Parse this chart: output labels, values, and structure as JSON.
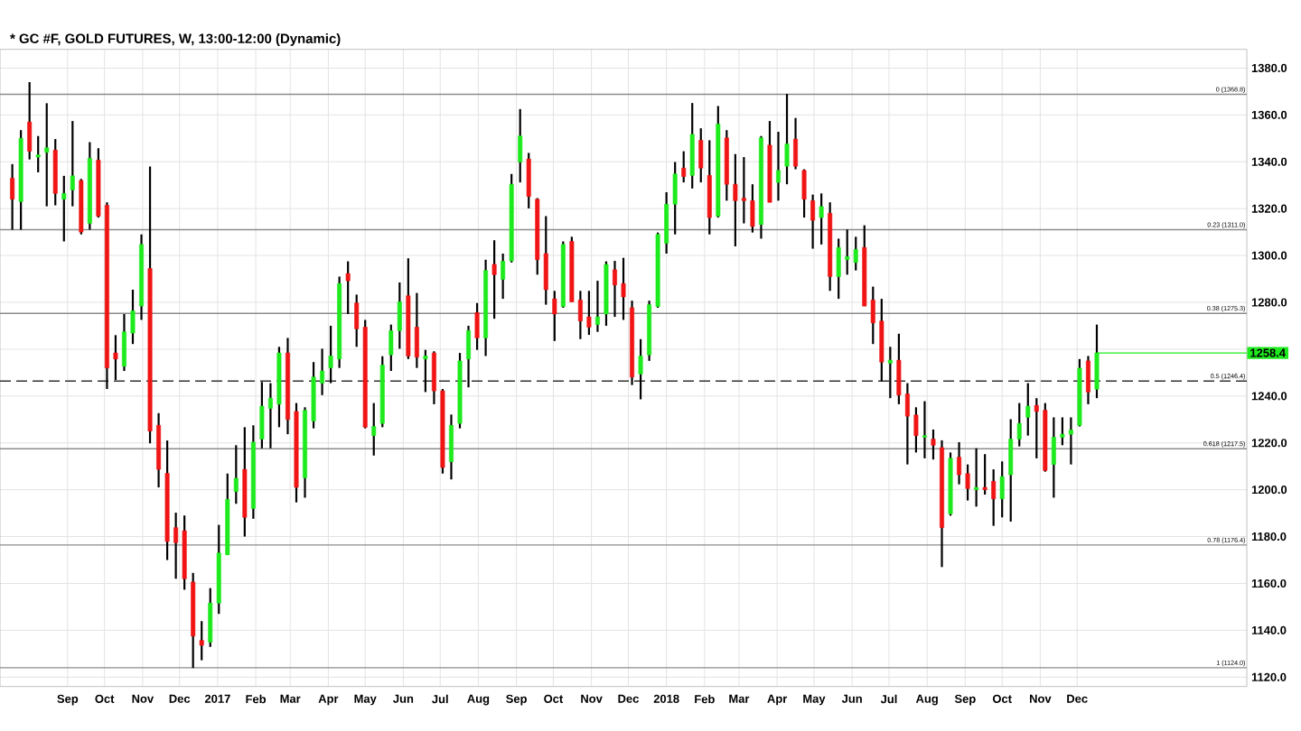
{
  "chart_data": {
    "type": "candlestick",
    "title": "* GC #F, GOLD FUTURES, W, 13:00-12:00 (Dynamic)",
    "x": [
      "2016-07-18",
      "2016-07-25",
      "2016-08-01",
      "2016-08-08",
      "2016-08-15",
      "2016-08-22",
      "2016-08-29",
      "2016-09-05",
      "2016-09-12",
      "2016-09-19",
      "2016-09-26",
      "2016-10-03",
      "2016-10-10",
      "2016-10-17",
      "2016-10-24",
      "2016-10-31",
      "2016-11-07",
      "2016-11-14",
      "2016-11-21",
      "2016-11-28",
      "2016-12-05",
      "2016-12-12",
      "2016-12-19",
      "2016-12-26",
      "2017-01-02",
      "2017-01-09",
      "2017-01-16",
      "2017-01-23",
      "2017-01-30",
      "2017-02-06",
      "2017-02-13",
      "2017-02-20",
      "2017-02-27",
      "2017-03-06",
      "2017-03-13",
      "2017-03-20",
      "2017-03-27",
      "2017-04-03",
      "2017-04-10",
      "2017-04-17",
      "2017-04-24",
      "2017-05-01",
      "2017-05-08",
      "2017-05-15",
      "2017-05-22",
      "2017-05-29",
      "2017-06-05",
      "2017-06-12",
      "2017-06-19",
      "2017-06-26",
      "2017-07-03",
      "2017-07-10",
      "2017-07-17",
      "2017-07-24",
      "2017-07-31",
      "2017-08-07",
      "2017-08-14",
      "2017-08-21",
      "2017-08-28",
      "2017-09-04",
      "2017-09-11",
      "2017-09-18",
      "2017-09-25",
      "2017-10-02",
      "2017-10-09",
      "2017-10-16",
      "2017-10-23",
      "2017-10-30",
      "2017-11-06",
      "2017-11-13",
      "2017-11-20",
      "2017-11-27",
      "2017-12-04",
      "2017-12-11",
      "2017-12-18",
      "2017-12-25",
      "2018-01-01",
      "2018-01-08",
      "2018-01-15",
      "2018-01-22",
      "2018-01-29",
      "2018-02-05",
      "2018-02-12",
      "2018-02-19",
      "2018-02-26",
      "2018-03-05",
      "2018-03-12",
      "2018-03-19",
      "2018-03-26",
      "2018-04-02",
      "2018-04-09",
      "2018-04-16",
      "2018-04-23",
      "2018-04-30",
      "2018-05-07",
      "2018-05-14",
      "2018-05-21",
      "2018-05-28",
      "2018-06-04",
      "2018-06-11",
      "2018-06-18",
      "2018-06-25",
      "2018-07-02",
      "2018-07-09",
      "2018-07-16",
      "2018-07-23",
      "2018-07-30",
      "2018-08-06",
      "2018-08-13",
      "2018-08-20",
      "2018-08-27",
      "2018-09-03",
      "2018-09-10",
      "2018-09-17",
      "2018-09-24",
      "2018-10-01",
      "2018-10-08",
      "2018-10-15",
      "2018-10-22",
      "2018-10-29",
      "2018-11-05",
      "2018-11-12",
      "2018-11-19",
      "2018-11-26",
      "2018-12-03",
      "2018-12-10",
      "2018-12-17"
    ],
    "ohlc": [
      [
        1333,
        1339,
        1311,
        1324
      ],
      [
        1323,
        1353.5,
        1311,
        1350
      ],
      [
        1357,
        1374,
        1341,
        1344.5
      ],
      [
        1342,
        1351,
        1335.5,
        1343
      ],
      [
        1344,
        1365,
        1321,
        1346
      ],
      [
        1345,
        1349.7,
        1321.4,
        1326.5
      ],
      [
        1324,
        1334,
        1306,
        1326.5
      ],
      [
        1328,
        1357.4,
        1321,
        1334
      ],
      [
        1332,
        1332.7,
        1309,
        1310
      ],
      [
        1313.7,
        1348.4,
        1311,
        1341.5
      ],
      [
        1340.7,
        1345.8,
        1316.2,
        1316.8
      ],
      [
        1321.4,
        1322.7,
        1243,
        1252
      ],
      [
        1258.4,
        1266,
        1246.8,
        1255.8
      ],
      [
        1252.7,
        1275,
        1250.7,
        1267.4
      ],
      [
        1266.9,
        1285.4,
        1262.2,
        1276.4
      ],
      [
        1278.4,
        1309,
        1272.5,
        1304.7
      ],
      [
        1294.4,
        1338,
        1219.8,
        1225
      ],
      [
        1227.5,
        1232.7,
        1201,
        1208.7
      ],
      [
        1207,
        1221,
        1170,
        1177.9
      ],
      [
        1183.8,
        1190.2,
        1162,
        1177.4
      ],
      [
        1182.5,
        1189,
        1157.3,
        1162
      ],
      [
        1160.6,
        1164.5,
        1123.9,
        1137.5
      ],
      [
        1135.7,
        1143.9,
        1127.2,
        1133.6
      ],
      [
        1134.9,
        1158,
        1132.9,
        1151.6
      ],
      [
        1151.6,
        1185,
        1147,
        1173
      ],
      [
        1172.2,
        1206.9,
        1172.2,
        1195.9
      ],
      [
        1199.2,
        1219,
        1194,
        1204.9
      ],
      [
        1208.7,
        1226.7,
        1180,
        1188.2
      ],
      [
        1192,
        1227.5,
        1187.6,
        1220.3
      ],
      [
        1221.6,
        1246,
        1217.7,
        1235.7
      ],
      [
        1234.7,
        1245.5,
        1217.7,
        1239.1
      ],
      [
        1236.5,
        1261,
        1226.7,
        1258.4
      ],
      [
        1258.4,
        1264.8,
        1223.7,
        1230
      ],
      [
        1233.4,
        1237,
        1194.6,
        1201
      ],
      [
        1205.1,
        1235.2,
        1196.6,
        1233.9
      ],
      [
        1229.3,
        1254.5,
        1226.2,
        1248.1
      ],
      [
        1245.5,
        1260.2,
        1240.4,
        1250.7
      ],
      [
        1252,
        1270,
        1245.5,
        1257.1
      ],
      [
        1255.8,
        1291,
        1252,
        1288
      ],
      [
        1292.3,
        1297.5,
        1275,
        1289.2
      ],
      [
        1279.7,
        1283.3,
        1261,
        1268.7
      ],
      [
        1269.4,
        1272.5,
        1226.2,
        1226.7
      ],
      [
        1223.1,
        1237,
        1214.6,
        1227
      ],
      [
        1228.3,
        1257,
        1226.7,
        1253.2
      ],
      [
        1257.6,
        1270.5,
        1250.7,
        1267.9
      ],
      [
        1267.9,
        1288.5,
        1260.2,
        1280.2
      ],
      [
        1282.8,
        1298.8,
        1255.8,
        1257.1
      ],
      [
        1269.4,
        1284,
        1252,
        1256.6
      ],
      [
        1255.8,
        1259.7,
        1241.7,
        1257.1
      ],
      [
        1258.4,
        1259.1,
        1236.5,
        1242.2
      ],
      [
        1242.2,
        1243,
        1206.9,
        1209.5
      ],
      [
        1212,
        1232.1,
        1204.4,
        1227.5
      ],
      [
        1228.3,
        1258.4,
        1226.2,
        1255
      ],
      [
        1255.8,
        1270,
        1243.7,
        1267.9
      ],
      [
        1275.6,
        1279.7,
        1259.7,
        1264.8
      ],
      [
        1264.8,
        1298.2,
        1257.1,
        1293.6
      ],
      [
        1296.2,
        1306.5,
        1273,
        1291.8
      ],
      [
        1289.8,
        1300.8,
        1281.5,
        1297.5
      ],
      [
        1297.7,
        1334.8,
        1297,
        1330.4
      ],
      [
        1339.9,
        1362.5,
        1331.2,
        1351
      ],
      [
        1341.2,
        1343.8,
        1320.1,
        1325.2
      ],
      [
        1324,
        1324.5,
        1291.8,
        1298.2
      ],
      [
        1300.8,
        1316.8,
        1279,
        1285.4
      ],
      [
        1281.5,
        1284.9,
        1263.5,
        1275
      ],
      [
        1278.2,
        1306,
        1277.7,
        1304.7
      ],
      [
        1306,
        1308,
        1280.2,
        1280.2
      ],
      [
        1281,
        1284.9,
        1264.3,
        1272
      ],
      [
        1273.8,
        1284.9,
        1266.1,
        1269.4
      ],
      [
        1270.5,
        1289.2,
        1267.4,
        1273.8
      ],
      [
        1275,
        1297.5,
        1270,
        1296.2
      ],
      [
        1293.9,
        1297.7,
        1273.8,
        1287.4
      ],
      [
        1288,
        1299,
        1272.5,
        1282.3
      ],
      [
        1277.7,
        1280.7,
        1244.7,
        1248.1
      ],
      [
        1249.4,
        1264.3,
        1238.6,
        1257.1
      ],
      [
        1257.6,
        1280.7,
        1255,
        1279
      ],
      [
        1278.2,
        1309.8,
        1277.7,
        1309
      ],
      [
        1305.2,
        1327,
        1300.8,
        1321.9
      ],
      [
        1321.9,
        1339.9,
        1309,
        1334.8
      ],
      [
        1337.3,
        1344.5,
        1331.2,
        1333.7
      ],
      [
        1334.2,
        1365.1,
        1328.6,
        1351.7
      ],
      [
        1349.2,
        1354.3,
        1331.2,
        1337.3
      ],
      [
        1334.2,
        1349.2,
        1309,
        1316.2
      ],
      [
        1316.8,
        1363.8,
        1316.2,
        1356.1
      ],
      [
        1350.2,
        1353.5,
        1323.4,
        1330.4
      ],
      [
        1330.4,
        1343.3,
        1303.9,
        1323.4
      ],
      [
        1324.5,
        1342,
        1313.7,
        1323.4
      ],
      [
        1323.4,
        1330.4,
        1309.8,
        1312.4
      ],
      [
        1313.2,
        1351,
        1307.2,
        1350.2
      ],
      [
        1347.1,
        1357.4,
        1322.7,
        1322.7
      ],
      [
        1331.2,
        1352.8,
        1323.4,
        1336.3
      ],
      [
        1338.1,
        1369,
        1330.4,
        1347.6
      ],
      [
        1349.7,
        1358.7,
        1336.8,
        1338.1
      ],
      [
        1336.3,
        1336.8,
        1316.2,
        1324
      ],
      [
        1323.4,
        1326,
        1302.9,
        1315
      ],
      [
        1316.2,
        1326.5,
        1304.7,
        1320.9
      ],
      [
        1318,
        1322.7,
        1284.9,
        1291
      ],
      [
        1291,
        1307.2,
        1281.5,
        1303.4
      ],
      [
        1298.2,
        1311.1,
        1291.8,
        1299.5
      ],
      [
        1297,
        1308,
        1293.6,
        1302.6
      ],
      [
        1303.4,
        1312.9,
        1278.4,
        1278.4
      ],
      [
        1281,
        1286.7,
        1262.2,
        1271.2
      ],
      [
        1272,
        1281.5,
        1246.3,
        1254.5
      ],
      [
        1254,
        1261,
        1239.1,
        1255.3
      ],
      [
        1255.3,
        1266.6,
        1236.5,
        1240.4
      ],
      [
        1240.9,
        1245.5,
        1210.8,
        1231.4
      ],
      [
        1231.9,
        1235.2,
        1215.9,
        1223.1
      ],
      [
        1222.4,
        1237.8,
        1213.4,
        1223.1
      ],
      [
        1221.6,
        1225.7,
        1212.9,
        1219
      ],
      [
        1218,
        1221.1,
        1167,
        1183.8
      ],
      [
        1189.7,
        1215.9,
        1188.9,
        1213.4
      ],
      [
        1213.9,
        1220.3,
        1202.3,
        1206.4
      ],
      [
        1206.9,
        1210.8,
        1195.4,
        1200.5
      ],
      [
        1200,
        1217.7,
        1192.8,
        1201
      ],
      [
        1201,
        1215.2,
        1197.9,
        1200
      ],
      [
        1203.6,
        1208.7,
        1184.6,
        1196.1
      ],
      [
        1196.1,
        1212.1,
        1188.2,
        1205.6
      ],
      [
        1206.4,
        1230.1,
        1186.4,
        1221.6
      ],
      [
        1221.6,
        1237,
        1218.5,
        1228.3
      ],
      [
        1230.9,
        1245.5,
        1223.1,
        1235.7
      ],
      [
        1236,
        1239.1,
        1213.4,
        1233.4
      ],
      [
        1233.9,
        1237,
        1207.7,
        1208.2
      ],
      [
        1210.8,
        1230.9,
        1196.6,
        1222.4
      ],
      [
        1222.4,
        1230.9,
        1219,
        1223.7
      ],
      [
        1223.7,
        1230.9,
        1210.8,
        1225.5
      ],
      [
        1227.5,
        1255.8,
        1227,
        1251.9
      ],
      [
        1255,
        1257.1,
        1236.5,
        1241.7
      ],
      [
        1242.9,
        1270.5,
        1239.1,
        1258.4
      ]
    ],
    "xlim": [
      "2016-07-08",
      "2019-04-18"
    ],
    "xticks": [
      {
        "value": "2016-09-01",
        "label": "Sep"
      },
      {
        "value": "2016-10-01",
        "label": "Oct"
      },
      {
        "value": "2016-11-01",
        "label": "Nov"
      },
      {
        "value": "2016-12-01",
        "label": "Dec"
      },
      {
        "value": "2017-01-01",
        "label": "2017"
      },
      {
        "value": "2017-02-01",
        "label": "Feb"
      },
      {
        "value": "2017-03-01",
        "label": "Mar"
      },
      {
        "value": "2017-04-01",
        "label": "Apr"
      },
      {
        "value": "2017-05-01",
        "label": "May"
      },
      {
        "value": "2017-06-01",
        "label": "Jun"
      },
      {
        "value": "2017-07-01",
        "label": "Jul"
      },
      {
        "value": "2017-08-01",
        "label": "Aug"
      },
      {
        "value": "2017-09-01",
        "label": "Sep"
      },
      {
        "value": "2017-10-01",
        "label": "Oct"
      },
      {
        "value": "2017-11-01",
        "label": "Nov"
      },
      {
        "value": "2017-12-01",
        "label": "Dec"
      },
      {
        "value": "2018-01-01",
        "label": "2018"
      },
      {
        "value": "2018-02-01",
        "label": "Feb"
      },
      {
        "value": "2018-03-01",
        "label": "Mar"
      },
      {
        "value": "2018-04-01",
        "label": "Apr"
      },
      {
        "value": "2018-05-01",
        "label": "May"
      },
      {
        "value": "2018-06-01",
        "label": "Jun"
      },
      {
        "value": "2018-07-01",
        "label": "Jul"
      },
      {
        "value": "2018-08-01",
        "label": "Aug"
      },
      {
        "value": "2018-09-01",
        "label": "Sep"
      },
      {
        "value": "2018-10-01",
        "label": "Oct"
      },
      {
        "value": "2018-11-01",
        "label": "Nov"
      },
      {
        "value": "2018-12-01",
        "label": "Dec"
      }
    ],
    "ylim": [
      1116,
      1388
    ],
    "yticks": [
      {
        "value": 1120,
        "label": "1120.0"
      },
      {
        "value": 1140,
        "label": "1140.0"
      },
      {
        "value": 1160,
        "label": "1160.0"
      },
      {
        "value": 1180,
        "label": "1180.0"
      },
      {
        "value": 1200,
        "label": "1200.0"
      },
      {
        "value": 1220,
        "label": "1220.0"
      },
      {
        "value": 1240,
        "label": "1240.0"
      },
      {
        "value": 1260,
        "label": null
      },
      {
        "value": 1280,
        "label": "1280.0"
      },
      {
        "value": 1300,
        "label": "1300.0"
      },
      {
        "value": 1320,
        "label": "1320.0"
      },
      {
        "value": 1340,
        "label": "1340.0"
      },
      {
        "value": 1360,
        "label": "1360.0"
      },
      {
        "value": 1380,
        "label": "1380.0"
      }
    ],
    "grid": true,
    "ref_lines": [
      {
        "axis": "y",
        "value": 1368.8,
        "label": "0 (1368.8)",
        "color": "#8c8c8c",
        "line_style": "solid"
      },
      {
        "axis": "y",
        "value": 1311.0,
        "label": "0.23 (1311.0)",
        "color": "#8c8c8c",
        "line_style": "solid"
      },
      {
        "axis": "y",
        "value": 1275.3,
        "label": "0.38 (1275.3)",
        "color": "#8c8c8c",
        "line_style": "solid"
      },
      {
        "axis": "y",
        "value": 1246.4,
        "label": "0.5 (1246.4)",
        "color": "#333333",
        "line_style": "dashed"
      },
      {
        "axis": "y",
        "value": 1217.5,
        "label": "0.618 (1217.5)",
        "color": "#8c8c8c",
        "line_style": "solid"
      },
      {
        "axis": "y",
        "value": 1176.4,
        "label": "0.78 (1176.4)",
        "color": "#8c8c8c",
        "line_style": "solid"
      },
      {
        "axis": "y",
        "value": 1124.0,
        "label": "1 (1124.0)",
        "color": "#8c8c8c",
        "line_style": "solid"
      }
    ],
    "annotations": [
      {
        "text": "1258.4",
        "x": "2018-12-17",
        "y": 1258.4
      }
    ]
  }
}
